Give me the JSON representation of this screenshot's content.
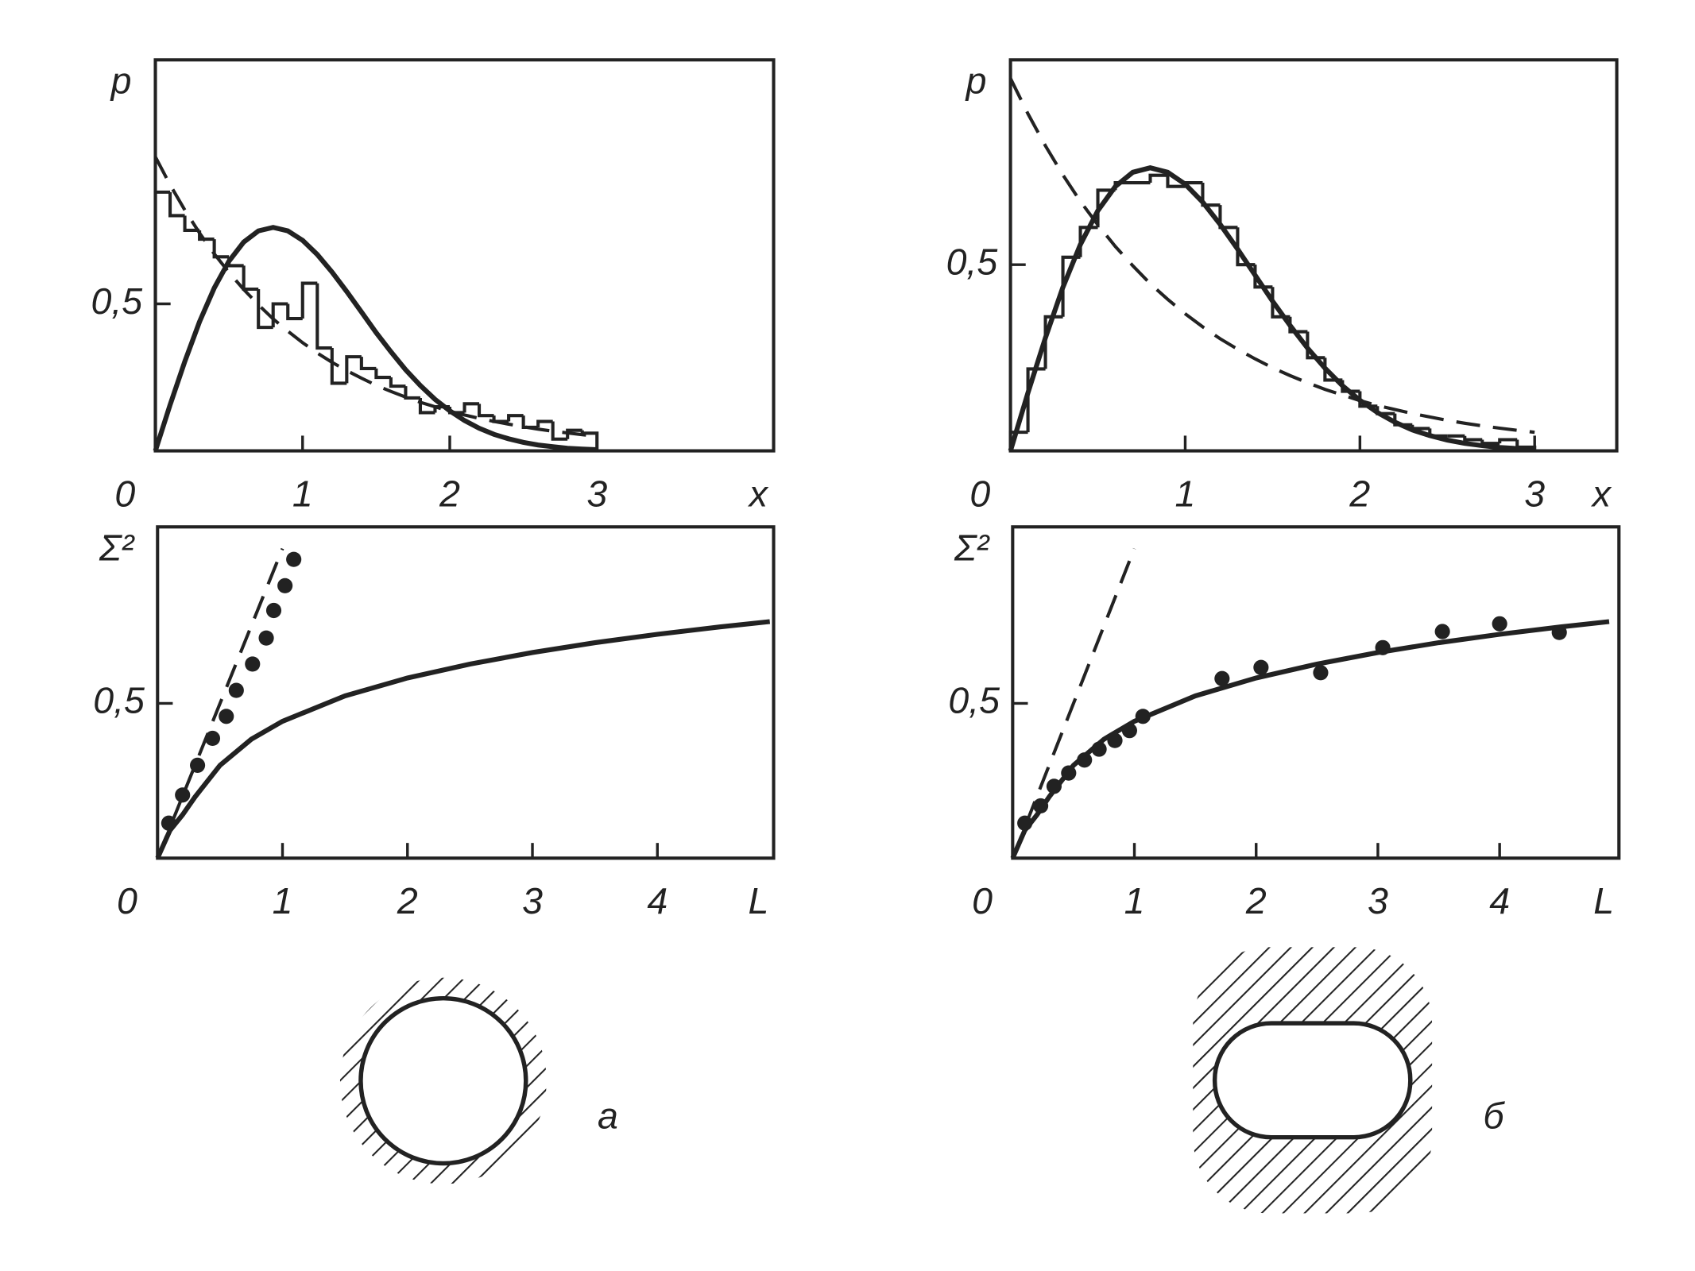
{
  "chart_data": [
    {
      "type": "histogram",
      "ylabel": "p",
      "xlabel": "x",
      "xlim": [
        0,
        4.2
      ],
      "ylim": [
        0,
        1.33
      ],
      "xticks": [
        0,
        1,
        2,
        3
      ],
      "yticks": [
        {
          "value": 0.5,
          "label": "0,5"
        }
      ],
      "color": "#222",
      "bins": [
        0,
        0.1,
        0.2,
        0.3,
        0.4,
        0.5,
        0.6,
        0.7,
        0.8,
        0.9,
        1.0,
        1.1,
        1.2,
        1.3,
        1.4,
        1.5,
        1.6,
        1.7,
        1.8,
        1.9,
        2.0,
        2.1,
        2.2,
        2.3,
        2.4,
        2.5,
        2.6,
        2.7,
        2.8,
        2.9,
        3.0
      ],
      "counts": [
        0.88,
        0.8,
        0.75,
        0.72,
        0.66,
        0.63,
        0.55,
        0.42,
        0.5,
        0.45,
        0.57,
        0.35,
        0.23,
        0.32,
        0.28,
        0.25,
        0.22,
        0.18,
        0.13,
        0.15,
        0.13,
        0.16,
        0.12,
        0.1,
        0.12,
        0.08,
        0.1,
        0.04,
        0.07,
        0.06
      ],
      "series": [
        {
          "style": "dashed",
          "x": [
            0,
            0.1,
            0.2,
            0.3,
            0.4,
            0.5,
            0.6,
            0.7,
            0.8,
            0.9,
            1.0,
            1.1,
            1.2,
            1.3,
            1.4,
            1.5,
            1.6,
            1.7,
            1.8,
            1.9,
            2.0,
            2.1,
            2.2,
            2.3,
            2.4,
            2.5,
            2.6,
            2.7,
            2.8,
            2.9,
            3.0
          ],
          "values": [
            1,
            0.905,
            0.819,
            0.741,
            0.67,
            0.607,
            0.549,
            0.497,
            0.449,
            0.407,
            0.368,
            0.333,
            0.301,
            0.273,
            0.247,
            0.223,
            0.202,
            0.183,
            0.165,
            0.15,
            0.135,
            0.122,
            0.111,
            0.1,
            0.091,
            0.082,
            0.074,
            0.067,
            0.061,
            0.055,
            0.05
          ]
        },
        {
          "style": "solid",
          "x": [
            0,
            0.1,
            0.2,
            0.3,
            0.4,
            0.5,
            0.6,
            0.7,
            0.8,
            0.9,
            1.0,
            1.1,
            1.2,
            1.3,
            1.4,
            1.5,
            1.6,
            1.7,
            1.8,
            1.9,
            2.0,
            2.1,
            2.2,
            2.3,
            2.4,
            2.5,
            2.6,
            2.7,
            2.8,
            2.9,
            3.0
          ],
          "values": [
            0,
            0.156,
            0.304,
            0.439,
            0.554,
            0.645,
            0.71,
            0.748,
            0.76,
            0.748,
            0.716,
            0.668,
            0.608,
            0.542,
            0.472,
            0.402,
            0.337,
            0.276,
            0.222,
            0.175,
            0.136,
            0.103,
            0.077,
            0.056,
            0.041,
            0.029,
            0.02,
            0.014,
            0.009,
            0.006,
            0.004
          ]
        }
      ]
    },
    {
      "type": "histogram",
      "ylabel": "p",
      "xlabel": "x",
      "xlim": [
        0,
        3.47
      ],
      "ylim": [
        0,
        1.05
      ],
      "xticks": [
        0,
        1,
        2,
        3
      ],
      "yticks": [
        {
          "value": 0.5,
          "label": "0,5"
        }
      ],
      "color": "#222",
      "bins": [
        0,
        0.1,
        0.2,
        0.3,
        0.4,
        0.5,
        0.6,
        0.7,
        0.8,
        0.9,
        1.0,
        1.1,
        1.2,
        1.3,
        1.4,
        1.5,
        1.6,
        1.7,
        1.8,
        1.9,
        2.0,
        2.1,
        2.2,
        2.3,
        2.4,
        2.5,
        2.6,
        2.7,
        2.8,
        2.9,
        3.0
      ],
      "counts": [
        0.05,
        0.22,
        0.36,
        0.52,
        0.6,
        0.7,
        0.72,
        0.72,
        0.74,
        0.71,
        0.72,
        0.66,
        0.6,
        0.5,
        0.44,
        0.36,
        0.32,
        0.25,
        0.19,
        0.16,
        0.12,
        0.1,
        0.07,
        0.06,
        0.04,
        0.04,
        0.03,
        0.02,
        0.03,
        0.01
      ],
      "series": [
        {
          "style": "dashed",
          "x": [
            0,
            0.1,
            0.2,
            0.3,
            0.4,
            0.5,
            0.6,
            0.7,
            0.8,
            0.9,
            1.0,
            1.1,
            1.2,
            1.3,
            1.4,
            1.5,
            1.6,
            1.7,
            1.8,
            1.9,
            2.0,
            2.1,
            2.2,
            2.3,
            2.4,
            2.5,
            2.6,
            2.7,
            2.8,
            2.9,
            3.0
          ],
          "values": [
            1,
            0.905,
            0.819,
            0.741,
            0.67,
            0.607,
            0.549,
            0.497,
            0.449,
            0.407,
            0.368,
            0.333,
            0.301,
            0.273,
            0.247,
            0.223,
            0.202,
            0.183,
            0.165,
            0.15,
            0.135,
            0.122,
            0.111,
            0.1,
            0.091,
            0.082,
            0.074,
            0.067,
            0.061,
            0.055,
            0.05
          ]
        },
        {
          "style": "solid",
          "x": [
            0,
            0.1,
            0.2,
            0.3,
            0.4,
            0.5,
            0.6,
            0.7,
            0.8,
            0.9,
            1.0,
            1.1,
            1.2,
            1.3,
            1.4,
            1.5,
            1.6,
            1.7,
            1.8,
            1.9,
            2.0,
            2.1,
            2.2,
            2.3,
            2.4,
            2.5,
            2.6,
            2.7,
            2.8,
            2.9,
            3.0
          ],
          "values": [
            0,
            0.156,
            0.304,
            0.439,
            0.554,
            0.645,
            0.71,
            0.748,
            0.76,
            0.748,
            0.716,
            0.668,
            0.608,
            0.542,
            0.472,
            0.402,
            0.337,
            0.276,
            0.222,
            0.175,
            0.136,
            0.103,
            0.077,
            0.056,
            0.041,
            0.029,
            0.02,
            0.014,
            0.009,
            0.006,
            0.004
          ]
        }
      ]
    },
    {
      "type": "scatter",
      "ylabel": "Σ²",
      "xlabel": "L",
      "xlim": [
        0,
        4.93
      ],
      "ylim": [
        0,
        1.07
      ],
      "xticks": [
        0,
        1,
        2,
        3,
        4
      ],
      "yticks": [
        {
          "value": 0.5,
          "label": "0,5"
        }
      ],
      "color": "#222",
      "series": [
        {
          "style": "dashed",
          "x": [
            0,
            1.0
          ],
          "values": [
            0,
            1.0
          ]
        },
        {
          "style": "solid",
          "x": [
            0,
            0.1,
            0.2,
            0.3,
            0.5,
            0.75,
            1,
            1.5,
            2,
            2.5,
            3,
            3.5,
            4,
            4.5,
            4.9
          ],
          "values": [
            0,
            0.09,
            0.14,
            0.198,
            0.3,
            0.384,
            0.442,
            0.524,
            0.582,
            0.627,
            0.664,
            0.696,
            0.723,
            0.747,
            0.764
          ]
        },
        {
          "style": "points",
          "x": [
            0.09,
            0.2,
            0.32,
            0.44,
            0.55,
            0.63,
            0.76,
            0.87,
            0.93,
            1.02,
            1.09
          ],
          "values": [
            0.113,
            0.204,
            0.3,
            0.387,
            0.458,
            0.542,
            0.627,
            0.711,
            0.8,
            0.88,
            0.965
          ]
        }
      ]
    },
    {
      "type": "scatter",
      "ylabel": "Σ²",
      "xlabel": "L",
      "xlim": [
        0,
        4.98
      ],
      "ylim": [
        0,
        1.07
      ],
      "xticks": [
        0,
        1,
        2,
        3,
        4
      ],
      "yticks": [
        {
          "value": 0.5,
          "label": "0,5"
        }
      ],
      "color": "#222",
      "series": [
        {
          "style": "dashed",
          "x": [
            0,
            1.0
          ],
          "values": [
            0,
            1.0
          ]
        },
        {
          "style": "solid",
          "x": [
            0,
            0.1,
            0.2,
            0.3,
            0.5,
            0.75,
            1,
            1.5,
            2,
            2.5,
            3,
            3.5,
            4,
            4.5,
            4.9
          ],
          "values": [
            0,
            0.09,
            0.14,
            0.198,
            0.3,
            0.384,
            0.442,
            0.524,
            0.582,
            0.627,
            0.664,
            0.696,
            0.723,
            0.747,
            0.764
          ]
        },
        {
          "style": "points",
          "x": [
            0.1,
            0.23,
            0.34,
            0.46,
            0.59,
            0.71,
            0.84,
            0.96,
            1.07,
            1.72,
            2.04,
            2.53,
            3.04,
            3.53,
            4.0,
            4.49
          ],
          "values": [
            0.113,
            0.169,
            0.232,
            0.275,
            0.317,
            0.352,
            0.38,
            0.412,
            0.458,
            0.58,
            0.616,
            0.599,
            0.68,
            0.732,
            0.757,
            0.729
          ]
        }
      ]
    }
  ],
  "panels": [
    "а",
    "б"
  ]
}
